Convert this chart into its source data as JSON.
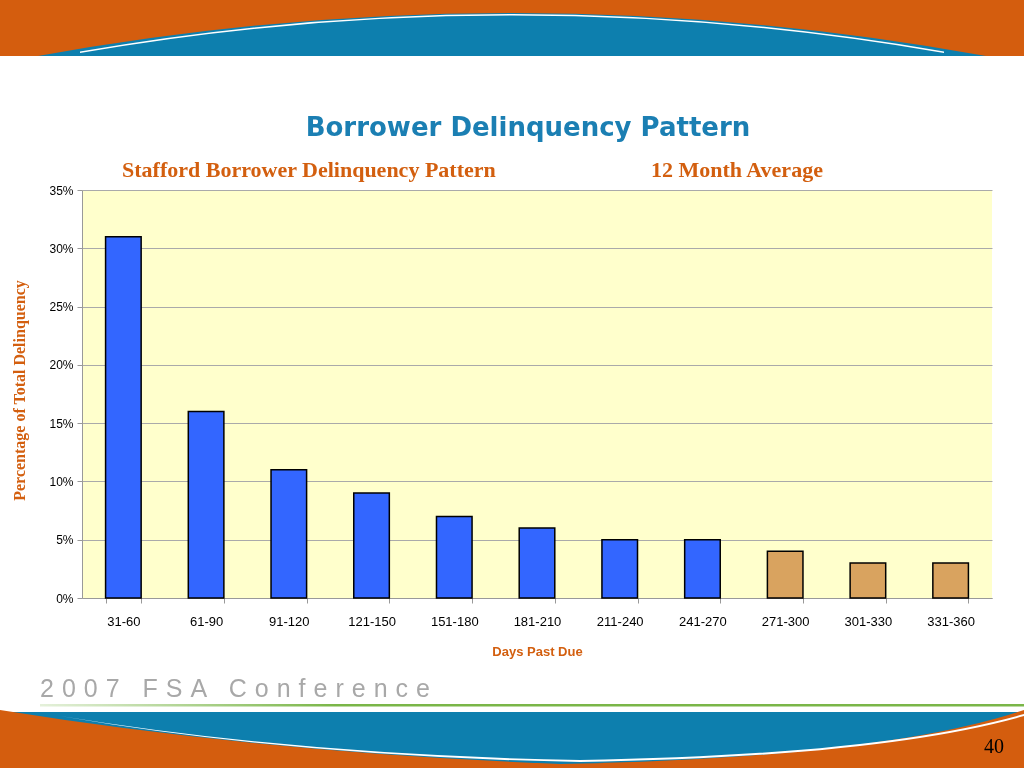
{
  "chart_data": {
    "type": "bar",
    "title": "Borrower Delinquency Pattern",
    "subtitle": "Stafford Borrower Delinquency Pattern",
    "xlabel": "Days Past Due",
    "ylabel": "Percentage of Total Delinquency",
    "annotations": [
      "12 Month Average",
      "2007 FSA Conference",
      "40"
    ],
    "categories": [
      "31-60",
      "61-90",
      "91-120",
      "121-150",
      "151-180",
      "181-210",
      "211-240",
      "241-270",
      "271-300",
      "301-330",
      "331-360"
    ],
    "values": [
      31,
      16,
      11,
      9,
      7,
      6,
      5,
      5,
      4,
      3,
      3
    ],
    "colors": [
      "#3366ff",
      "#3366ff",
      "#3366ff",
      "#3366ff",
      "#3366ff",
      "#3366ff",
      "#3366ff",
      "#3366ff",
      "#d9a35f",
      "#d9a35f",
      "#d9a35f"
    ],
    "ylim": [
      0,
      35
    ],
    "yticks": [
      {
        "value": 0,
        "label": "0%"
      },
      {
        "value": 5,
        "label": "5%"
      },
      {
        "value": 10,
        "label": "10%"
      },
      {
        "value": 15,
        "label": "15%"
      },
      {
        "value": 20,
        "label": "20%"
      },
      {
        "value": 25,
        "label": "25%"
      },
      {
        "value": 30,
        "label": "30%"
      },
      {
        "value": 35,
        "label": "35%"
      }
    ],
    "grid": "y"
  }
}
